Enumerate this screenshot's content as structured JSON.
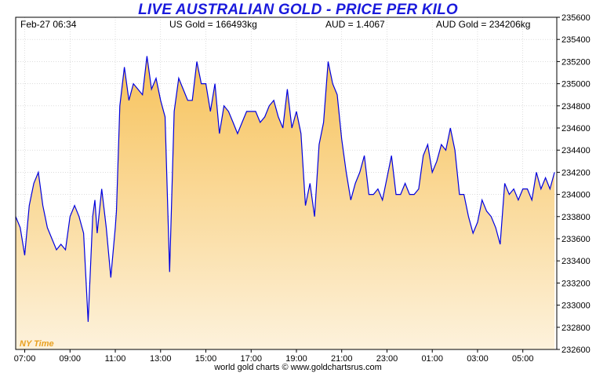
{
  "title": "LIVE AUSTRALIAN GOLD - PRICE PER KILO",
  "header": {
    "datetime": "Feb-27  06:34",
    "us_gold": "US Gold = 166493kg",
    "aud_rate": "AUD = 1.4067",
    "aud_gold": "AUD Gold = 234206kg"
  },
  "time_zone_label": "NY Time",
  "footer": "world gold charts © www.goldchartsrus.com",
  "colors": {
    "line": "#0000e0",
    "fill_top": "#f7c25a",
    "fill_bottom": "#fdf2dc",
    "grid": "#c8c8c8",
    "title": "#1a1adc"
  },
  "chart_data": {
    "type": "area",
    "title": "LIVE AUSTRALIAN GOLD - PRICE PER KILO",
    "xlabel": "",
    "ylabel": "",
    "x_ticks": [
      "07:00",
      "09:00",
      "11:00",
      "13:00",
      "15:00",
      "17:00",
      "19:00",
      "21:00",
      "23:00",
      "01:00",
      "03:00",
      "05:00"
    ],
    "y_ticks": [
      232600,
      232800,
      233000,
      233200,
      233400,
      233600,
      233800,
      234000,
      234200,
      234400,
      234600,
      234800,
      235000,
      235200,
      235400,
      235600
    ],
    "ylim": [
      232600,
      235600
    ],
    "x_hours_range": [
      6.6,
      30.5
    ],
    "grid": true,
    "series": [
      {
        "x": [
          6.6,
          6.8,
          7.0,
          7.2,
          7.4,
          7.6,
          7.8,
          8.0,
          8.2,
          8.4,
          8.6,
          8.8,
          9.0,
          9.2,
          9.4,
          9.6,
          9.8,
          10.0,
          10.1,
          10.2,
          10.4,
          10.6,
          10.8,
          11.0,
          11.05,
          11.2,
          11.4,
          11.6,
          11.8,
          12.0,
          12.2,
          12.4,
          12.6,
          12.8,
          13.0,
          13.2,
          13.4,
          13.6,
          13.8,
          14.0,
          14.2,
          14.4,
          14.6,
          14.8,
          15.0,
          15.2,
          15.4,
          15.6,
          15.8,
          16.0,
          16.2,
          16.4,
          16.6,
          16.8,
          17.0,
          17.2,
          17.4,
          17.6,
          17.8,
          18.0,
          18.2,
          18.4,
          18.6,
          18.8,
          19.0,
          19.2,
          19.4,
          19.6,
          19.8,
          20.0,
          20.2,
          20.4,
          20.6,
          20.8,
          21.0,
          21.2,
          21.4,
          21.6,
          21.8,
          22.0,
          22.2,
          22.4,
          22.6,
          22.8,
          23.0,
          23.2,
          23.4,
          23.6,
          23.8,
          24.0,
          24.2,
          24.4,
          24.6,
          24.8,
          25.0,
          25.2,
          25.4,
          25.6,
          25.8,
          26.0,
          26.2,
          26.4,
          26.6,
          26.8,
          27.0,
          27.2,
          27.4,
          27.6,
          27.8,
          28.0,
          28.2,
          28.4,
          28.6,
          28.8,
          29.0,
          29.2,
          29.4,
          29.6,
          29.8,
          30.0,
          30.2,
          30.4
        ],
        "values": [
          233800,
          233700,
          233450,
          233900,
          234100,
          234200,
          233900,
          233700,
          233600,
          233500,
          233550,
          233500,
          233800,
          233900,
          233800,
          233650,
          232850,
          233800,
          233950,
          233650,
          234050,
          233700,
          233250,
          233700,
          233850,
          234800,
          235150,
          234850,
          235000,
          234950,
          234900,
          235250,
          234950,
          235050,
          234850,
          234700,
          233300,
          234750,
          235050,
          234950,
          234850,
          234850,
          235200,
          235000,
          235000,
          234750,
          235000,
          234550,
          234800,
          234750,
          234650,
          234550,
          234650,
          234750,
          234750,
          234750,
          234650,
          234700,
          234800,
          234850,
          234700,
          234600,
          234950,
          234600,
          234750,
          234550,
          233900,
          234100,
          233800,
          234450,
          234650,
          235200,
          235000,
          234900,
          234500,
          234200,
          233950,
          234100,
          234200,
          234350,
          234000,
          234000,
          234050,
          233950,
          234150,
          234350,
          234000,
          234000,
          234100,
          234000,
          234000,
          234050,
          234350,
          234450,
          234200,
          234300,
          234450,
          234400,
          234600,
          234400,
          234000,
          234000,
          233800,
          233650,
          233750,
          233950,
          233850,
          233800,
          233700,
          233550,
          234100,
          234000,
          234050,
          233950,
          234050,
          234050,
          233950,
          234200,
          234050,
          234150,
          234050,
          234200
        ]
      }
    ]
  }
}
